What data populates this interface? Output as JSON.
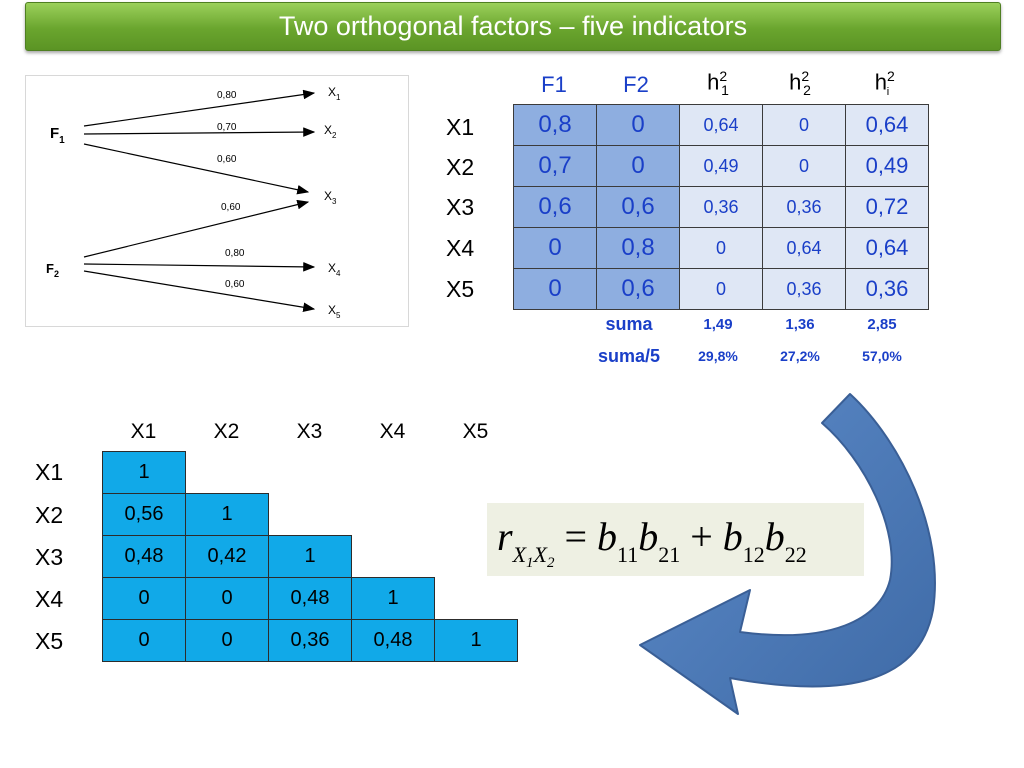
{
  "title": "Two orthogonal factors – five indicators",
  "diagram": {
    "factors": [
      {
        "label": "F",
        "sub": "1"
      },
      {
        "label": "F",
        "sub": "2"
      }
    ],
    "indicators": [
      {
        "label": "X",
        "sub": "1"
      },
      {
        "label": "X",
        "sub": "2"
      },
      {
        "label": "X",
        "sub": "3"
      },
      {
        "label": "X",
        "sub": "4"
      },
      {
        "label": "X",
        "sub": "5"
      }
    ],
    "paths": [
      {
        "from": "F1",
        "to": "X1",
        "weight": "0,80"
      },
      {
        "from": "F1",
        "to": "X2",
        "weight": "0,70"
      },
      {
        "from": "F1",
        "to": "X3",
        "weight": "0,60"
      },
      {
        "from": "F2",
        "to": "X3",
        "weight": "0,60"
      },
      {
        "from": "F2",
        "to": "X4",
        "weight": "0,80"
      },
      {
        "from": "F2",
        "to": "X5",
        "weight": "0,60"
      }
    ]
  },
  "loadings": {
    "headers": [
      {
        "base": "F1",
        "sup": "",
        "sub": ""
      },
      {
        "base": "F2",
        "sup": "",
        "sub": ""
      },
      {
        "base": "h",
        "sup": "2",
        "sub": "1"
      },
      {
        "base": "h",
        "sup": "2",
        "sub": "2"
      },
      {
        "base": "h",
        "sup": "2",
        "sub": "i"
      }
    ],
    "rows": [
      {
        "label": "X1",
        "f1": "0,8",
        "f2": "0",
        "h1": "0,64",
        "h2": "0",
        "hi": "0,64"
      },
      {
        "label": "X2",
        "f1": "0,7",
        "f2": "0",
        "h1": "0,49",
        "h2": "0",
        "hi": "0,49"
      },
      {
        "label": "X3",
        "f1": "0,6",
        "f2": "0,6",
        "h1": "0,36",
        "h2": "0,36",
        "hi": "0,72"
      },
      {
        "label": "X4",
        "f1": "0",
        "f2": "0,8",
        "h1": "0",
        "h2": "0,64",
        "hi": "0,64"
      },
      {
        "label": "X5",
        "f1": "0",
        "f2": "0,6",
        "h1": "0",
        "h2": "0,36",
        "hi": "0,36"
      }
    ],
    "suma": {
      "label": "suma",
      "h1": "1,49",
      "h2": "1,36",
      "hi": "2,85"
    },
    "suma5": {
      "label": "suma/5",
      "h1": "29,8%",
      "h2": "27,2%",
      "hi": "57,0%"
    }
  },
  "correlation": {
    "col_headers": [
      "X1",
      "X2",
      "X3",
      "X4",
      "X5"
    ],
    "rows": [
      {
        "label": "X1",
        "values": [
          "1"
        ]
      },
      {
        "label": "X2",
        "values": [
          "0,56",
          "1"
        ]
      },
      {
        "label": "X3",
        "values": [
          "0,48",
          "0,42",
          "1"
        ]
      },
      {
        "label": "X4",
        "values": [
          "0",
          "0",
          "0,48",
          "1"
        ]
      },
      {
        "label": "X5",
        "values": [
          "0",
          "0",
          "0,36",
          "0,48",
          "1"
        ]
      }
    ]
  },
  "formula": {
    "lhs": "r",
    "lhs_sub1": "X",
    "lhs_sub1_idx": "1",
    "lhs_sub2": "X",
    "lhs_sub2_idx": "2",
    "eq": "=",
    "t1a": "b",
    "t1a_idx": "11",
    "t1b": "b",
    "t1b_idx": "21",
    "plus": "+",
    "t2a": "b",
    "t2a_idx": "12",
    "t2b": "b",
    "t2b_idx": "22"
  },
  "colors": {
    "title_bg": "#6aa52e",
    "loadings_factor_bg": "#8eaee0",
    "loadings_h_bg": "#dfe7f5",
    "blue_text": "#1a3fc8",
    "corr_cell_bg": "#11a9e8",
    "arrow": "#4a78b5",
    "formula_bg": "#eef0e3"
  }
}
